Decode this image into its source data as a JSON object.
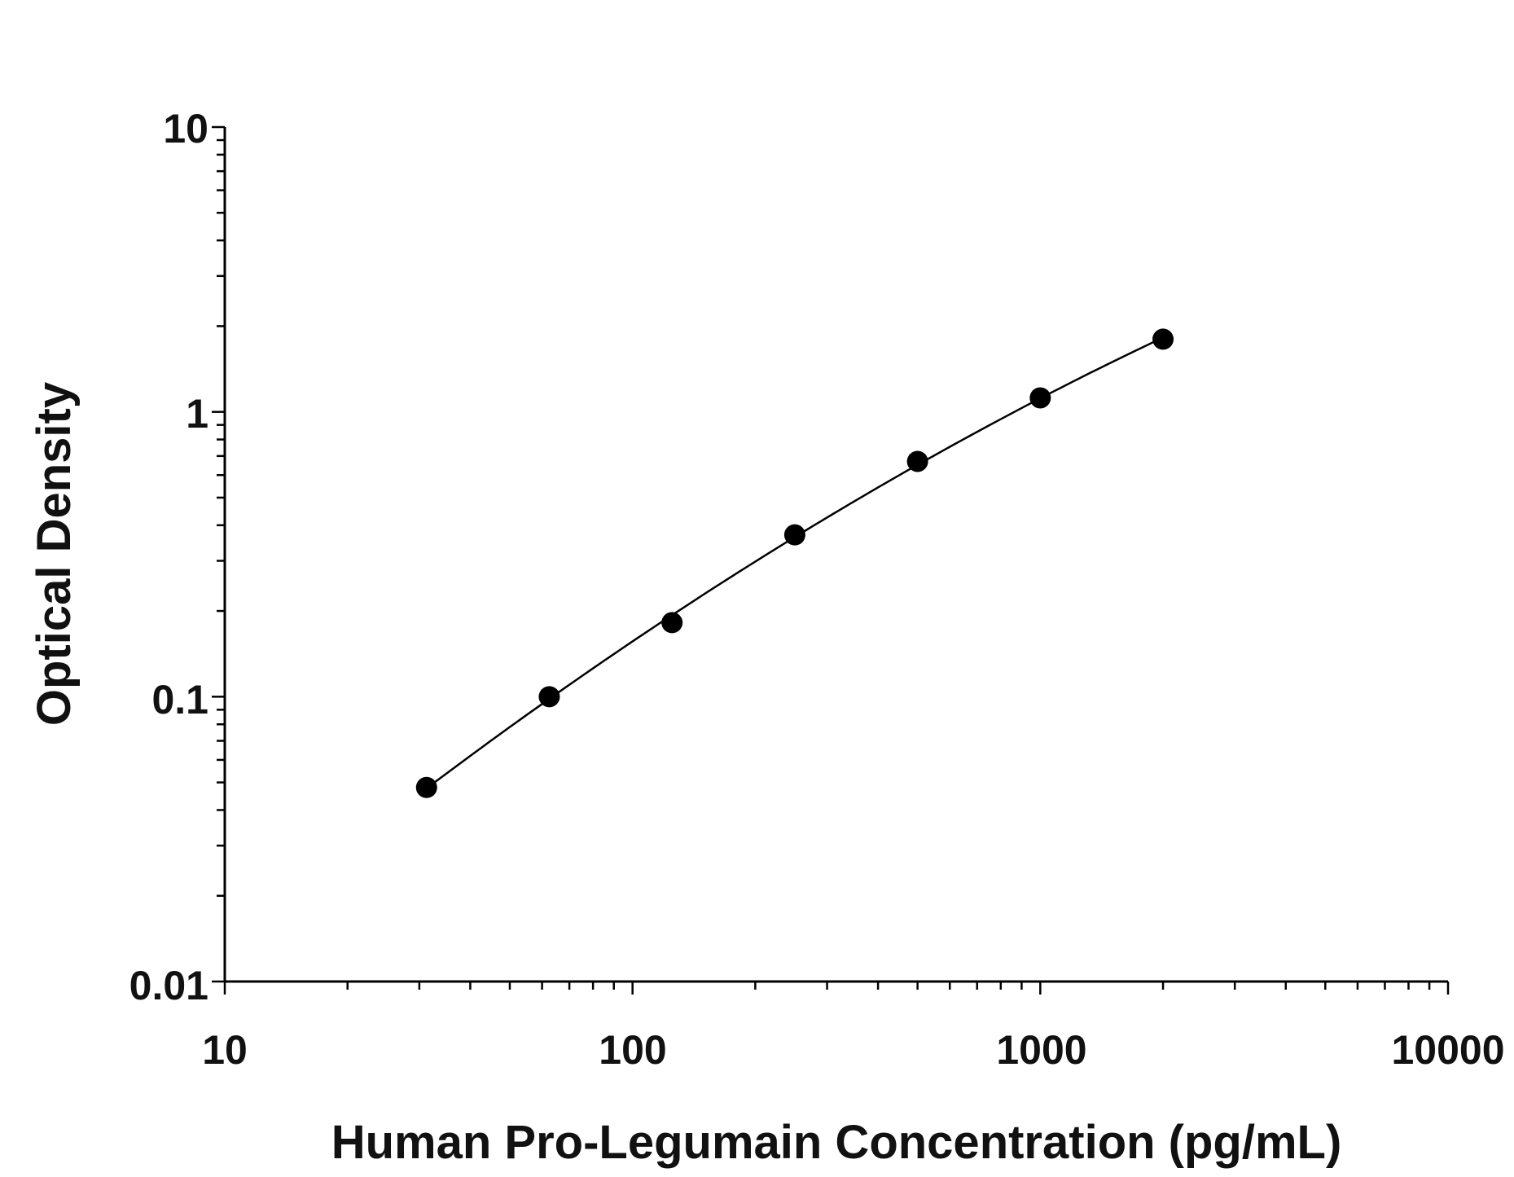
{
  "chart_data": {
    "type": "scatter",
    "title": "",
    "xlabel": "Human Pro-Legumain Concentration (pg/mL)",
    "ylabel": "Optical Density",
    "x_scale": "log",
    "y_scale": "log",
    "xlim": [
      10,
      10000
    ],
    "ylim": [
      0.01,
      10
    ],
    "x_ticks": [
      10,
      100,
      1000,
      10000
    ],
    "x_tick_labels": [
      "10",
      "100",
      "1000",
      "10000"
    ],
    "y_ticks": [
      0.01,
      0.1,
      1,
      10
    ],
    "y_tick_labels": [
      "0.01",
      "0.1",
      "1",
      "10"
    ],
    "grid": false,
    "legend": "none",
    "marker_color": "#000000",
    "series": [
      {
        "x": [
          31.25,
          62.5,
          125,
          250,
          500,
          1000,
          2000
        ],
        "y": [
          0.048,
          0.1,
          0.182,
          0.37,
          0.67,
          1.12,
          1.8
        ]
      }
    ],
    "fit_curve": true
  }
}
